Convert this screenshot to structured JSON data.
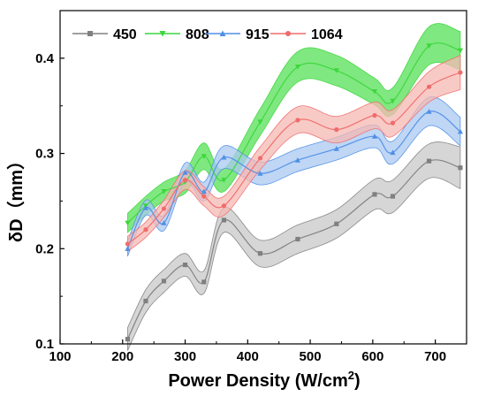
{
  "chart_data": {
    "type": "line",
    "xlabel": "Power Density (W/cm",
    "xlabel_sup": "2",
    "xlabel_end": ")",
    "ylabel": "δD（mm）",
    "xlim": [
      100,
      750
    ],
    "ylim": [
      0.1,
      0.45
    ],
    "x_ticks": [
      "100",
      "200",
      "300",
      "400",
      "500",
      "600",
      "700"
    ],
    "y_ticks": [
      "0.1",
      "0.2",
      "0.3",
      "0.4"
    ],
    "x_tick_values": [
      100,
      200,
      300,
      400,
      500,
      600,
      700
    ],
    "y_tick_values": [
      0.1,
      0.2,
      0.3,
      0.4
    ],
    "legend_position": "top",
    "grid": false,
    "series": [
      {
        "name": "450",
        "color": "#808080",
        "band_color": "#c8c8c8",
        "marker": "square",
        "x": [
          208,
          237,
          266,
          300,
          330,
          362,
          420,
          480,
          542,
          603,
          632,
          690,
          740
        ],
        "y": [
          0.105,
          0.145,
          0.166,
          0.183,
          0.165,
          0.23,
          0.195,
          0.21,
          0.226,
          0.257,
          0.255,
          0.292,
          0.285
        ],
        "band": [
          0.012,
          0.012,
          0.012,
          0.012,
          0.012,
          0.013,
          0.014,
          0.015,
          0.015,
          0.016,
          0.017,
          0.018,
          0.022
        ]
      },
      {
        "name": "808",
        "color": "#3dd63d",
        "band_color": "#55e055",
        "marker": "triangle-down",
        "x": [
          208,
          237,
          266,
          300,
          330,
          362,
          420,
          480,
          542,
          603,
          632,
          690,
          740
        ],
        "y": [
          0.227,
          0.245,
          0.26,
          0.27,
          0.297,
          0.272,
          0.333,
          0.391,
          0.387,
          0.365,
          0.355,
          0.413,
          0.408
        ],
        "band": [
          0.01,
          0.01,
          0.01,
          0.012,
          0.014,
          0.012,
          0.014,
          0.016,
          0.016,
          0.014,
          0.014,
          0.02,
          0.02
        ]
      },
      {
        "name": "915",
        "color": "#4f8fe6",
        "band_color": "#a9c8f2",
        "marker": "triangle-up",
        "x": [
          208,
          237,
          266,
          300,
          330,
          362,
          420,
          480,
          542,
          603,
          632,
          690,
          740
        ],
        "y": [
          0.2,
          0.243,
          0.227,
          0.28,
          0.26,
          0.296,
          0.279,
          0.293,
          0.305,
          0.318,
          0.301,
          0.344,
          0.323
        ],
        "band": [
          0.008,
          0.008,
          0.008,
          0.01,
          0.01,
          0.012,
          0.012,
          0.012,
          0.012,
          0.012,
          0.012,
          0.015,
          0.015
        ]
      },
      {
        "name": "1064",
        "color": "#f06b6b",
        "band_color": "#f5b8b3",
        "marker": "circle",
        "x": [
          208,
          237,
          266,
          300,
          330,
          362,
          420,
          480,
          542,
          603,
          632,
          690,
          740
        ],
        "y": [
          0.205,
          0.22,
          0.242,
          0.272,
          0.255,
          0.245,
          0.295,
          0.335,
          0.325,
          0.34,
          0.332,
          0.37,
          0.385
        ],
        "band": [
          0.008,
          0.008,
          0.009,
          0.01,
          0.01,
          0.01,
          0.012,
          0.014,
          0.014,
          0.014,
          0.014,
          0.016,
          0.018
        ]
      }
    ]
  }
}
